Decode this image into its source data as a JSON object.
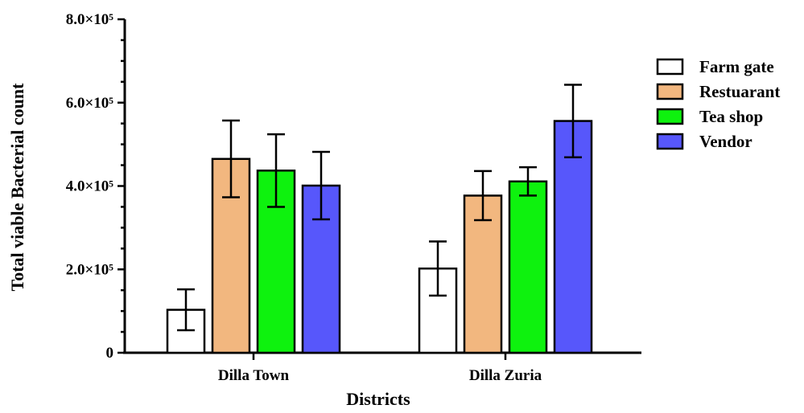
{
  "chart_data": {
    "type": "bar",
    "title": "",
    "xlabel": "Districts",
    "ylabel": "Total viable Bacterial count",
    "ylim": [
      0,
      800000
    ],
    "yticks": [
      {
        "value": 0,
        "label": "0"
      },
      {
        "value": 200000,
        "label": "2.0×10⁵"
      },
      {
        "value": 400000,
        "label": "4.0×10⁵"
      },
      {
        "value": 600000,
        "label": "6.0×10⁵"
      },
      {
        "value": 800000,
        "label": "8.0×10⁵"
      }
    ],
    "categories": [
      "Dilla Town",
      "Dilla Zuria"
    ],
    "series": [
      {
        "name": "Farm gate",
        "color": "#ffffff",
        "values": [
          103000,
          202000
        ],
        "errors": [
          49000,
          65000
        ]
      },
      {
        "name": "Restuarant",
        "color": "#f2b77f",
        "values": [
          465000,
          377000
        ],
        "errors": [
          92000,
          59000
        ]
      },
      {
        "name": "Tea shop",
        "color": "#0ef20e",
        "values": [
          437000,
          411000
        ],
        "errors": [
          87000,
          34000
        ]
      },
      {
        "name": "Vendor",
        "color": "#5757fb",
        "values": [
          401000,
          556000
        ],
        "errors": [
          81000,
          87000
        ]
      }
    ],
    "grid": false,
    "legend_position": "right"
  }
}
